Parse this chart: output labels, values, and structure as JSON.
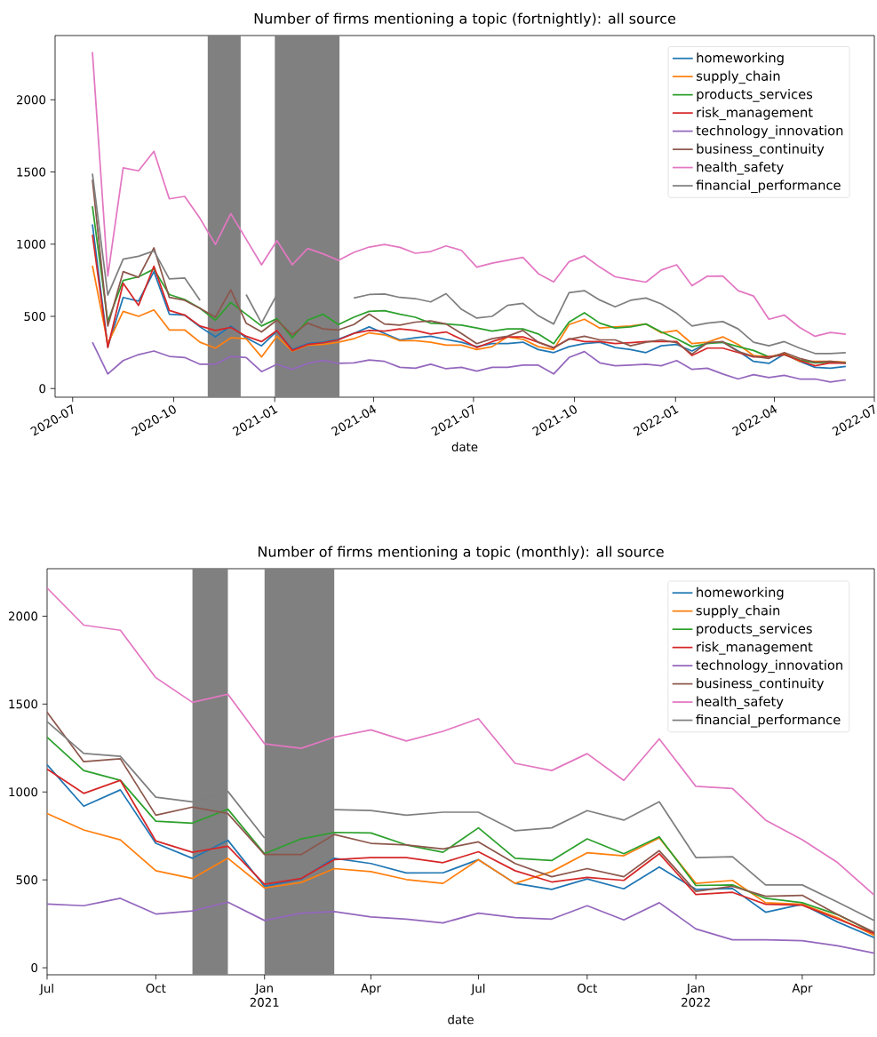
{
  "chart_data": [
    {
      "type": "line",
      "title": "Number of firms mentioning a topic (fortnightly): all source",
      "xlabel": "date",
      "legend": "top right",
      "x": [
        "2020-07-19",
        "2020-08-02",
        "2020-08-16",
        "2020-08-30",
        "2020-09-13",
        "2020-09-27",
        "2020-10-11",
        "2020-10-25",
        "2020-11-08",
        "2020-11-22",
        "2020-12-06",
        "2020-12-20",
        "2021-01-03",
        "2021-01-17",
        "2021-01-31",
        "2021-02-14",
        "2021-02-28",
        "2021-03-14",
        "2021-03-28",
        "2021-04-11",
        "2021-04-25",
        "2021-05-09",
        "2021-05-23",
        "2021-06-06",
        "2021-06-20",
        "2021-07-04",
        "2021-07-18",
        "2021-08-01",
        "2021-08-15",
        "2021-08-29",
        "2021-09-12",
        "2021-09-26",
        "2021-10-10",
        "2021-10-24",
        "2021-11-07",
        "2021-11-21",
        "2021-12-05",
        "2021-12-19",
        "2022-01-02",
        "2022-01-16",
        "2022-01-30",
        "2022-02-13",
        "2022-02-27",
        "2022-03-13",
        "2022-03-27",
        "2022-04-10",
        "2022-04-24",
        "2022-05-08",
        "2022-05-22",
        "2022-06-05"
      ],
      "xlim": [
        "2020-06-15",
        "2022-07-01"
      ],
      "xticks": [
        {
          "value": "2020-07",
          "label": "2020-07"
        },
        {
          "value": "2020-10",
          "label": "2020-10"
        },
        {
          "value": "2021-01",
          "label": "2021-01"
        },
        {
          "value": "2021-04",
          "label": "2021-04"
        },
        {
          "value": "2021-07",
          "label": "2021-07"
        },
        {
          "value": "2021-10",
          "label": "2021-10"
        },
        {
          "value": "2022-01",
          "label": "2022-01"
        },
        {
          "value": "2022-04",
          "label": "2022-04"
        },
        {
          "value": "2022-07",
          "label": "2022-07"
        }
      ],
      "ylim": [
        -60,
        2445
      ],
      "yticks": [
        0,
        500,
        1000,
        1500,
        2000
      ],
      "bands": [
        {
          "axis": "x",
          "from": "2020-11-01",
          "to": "2020-12-01",
          "color": "#808080"
        },
        {
          "axis": "x",
          "from": "2021-01-01",
          "to": "2021-03-01",
          "color": "#808080"
        }
      ],
      "series": [
        {
          "name": "homeworking",
          "color": "#1f77b4",
          "values": [
            1137,
            290,
            631,
            606,
            810,
            515,
            509,
            427,
            358,
            433,
            351,
            296,
            398,
            270,
            311,
            321,
            341,
            382,
            427,
            382,
            337,
            351,
            362,
            340,
            321,
            290,
            311,
            311,
            321,
            270,
            249,
            290,
            311,
            321,
            284,
            270,
            249,
            296,
            305,
            260,
            317,
            321,
            260,
            188,
            174,
            239,
            188,
            147,
            141,
            153
          ]
        },
        {
          "name": "supply_chain",
          "color": "#ff7f0e",
          "values": [
            851,
            311,
            535,
            500,
            545,
            406,
            406,
            321,
            280,
            351,
            345,
            219,
            362,
            260,
            301,
            305,
            321,
            345,
            386,
            372,
            331,
            331,
            321,
            301,
            301,
            270,
            290,
            358,
            341,
            290,
            270,
            443,
            480,
            419,
            427,
            433,
            447,
            386,
            402,
            311,
            321,
            358,
            305,
            229,
            219,
            243,
            188,
            188,
            188,
            182
          ]
        },
        {
          "name": "products_services",
          "color": "#2ca02c",
          "values": [
            1263,
            464,
            749,
            774,
            827,
            651,
            617,
            555,
            474,
            596,
            515,
            433,
            484,
            351,
            474,
            515,
            443,
            494,
            535,
            539,
            515,
            494,
            453,
            447,
            439,
            419,
            398,
            413,
            413,
            378,
            311,
            460,
            525,
            453,
            419,
            427,
            447,
            392,
            345,
            290,
            311,
            321,
            290,
            264,
            219,
            235,
            198,
            178,
            182,
            178
          ]
        },
        {
          "name": "risk_management",
          "color": "#d62728",
          "values": [
            1065,
            284,
            729,
            576,
            847,
            541,
            509,
            433,
            402,
            423,
            362,
            325,
            402,
            264,
            305,
            317,
            337,
            382,
            402,
            398,
            413,
            402,
            378,
            392,
            341,
            284,
            325,
            358,
            358,
            321,
            280,
            345,
            325,
            325,
            311,
            317,
            325,
            325,
            325,
            229,
            280,
            280,
            249,
            219,
            219,
            235,
            194,
            158,
            178,
            174
          ]
        },
        {
          "name": "technology_innovation",
          "color": "#9467bd",
          "values": [
            321,
            101,
            194,
            235,
            260,
            223,
            215,
            168,
            168,
            223,
            215,
            117,
            168,
            133,
            174,
            194,
            174,
            178,
            198,
            188,
            147,
            141,
            168,
            137,
            147,
            121,
            147,
            147,
            162,
            162,
            101,
            215,
            256,
            178,
            158,
            162,
            168,
            158,
            194,
            133,
            141,
            101,
            66,
            96,
            76,
            92,
            66,
            66,
            45,
            60
          ]
        },
        {
          "name": "business_continuity",
          "color": "#8c564b",
          "values": [
            1447,
            433,
            810,
            770,
            974,
            631,
            611,
            555,
            494,
            684,
            453,
            392,
            474,
            372,
            453,
            413,
            406,
            443,
            515,
            447,
            439,
            460,
            468,
            447,
            382,
            311,
            345,
            362,
            402,
            321,
            284,
            341,
            362,
            337,
            337,
            296,
            321,
            337,
            317,
            239,
            317,
            325,
            256,
            223,
            209,
            249,
            209,
            182,
            188,
            178
          ]
        },
        {
          "name": "health_safety",
          "color": "#e377c2",
          "values": [
            2330,
            780,
            1529,
            1508,
            1643,
            1314,
            1331,
            1178,
            998,
            1212,
            1035,
            857,
            1025,
            857,
            970,
            933,
            888,
            943,
            980,
            998,
            978,
            937,
            949,
            988,
            957,
            841,
            868,
            888,
            908,
            796,
            739,
            878,
            919,
            841,
            774,
            755,
            737,
            821,
            857,
            712,
            778,
            780,
            678,
            641,
            480,
            509,
            423,
            362,
            388,
            376
          ]
        },
        {
          "name": "financial_performance",
          "color": "#7f7f7f",
          "values": [
            1488,
            647,
            896,
            916,
            953,
            759,
            766,
            611,
            null,
            null,
            651,
            453,
            651,
            null,
            null,
            null,
            null,
            627,
            651,
            655,
            631,
            623,
            600,
            657,
            549,
            488,
            500,
            576,
            590,
            504,
            447,
            664,
            678,
            613,
            566,
            611,
            627,
            586,
            521,
            433,
            453,
            464,
            413,
            321,
            296,
            325,
            280,
            243,
            243,
            249
          ]
        }
      ]
    },
    {
      "type": "line",
      "title": "Number of firms mentioning a topic (monthly): all source",
      "xlabel": "date",
      "legend": "top right",
      "x": [
        "2020-07",
        "2020-08",
        "2020-09",
        "2020-10",
        "2020-11",
        "2020-12",
        "2021-01",
        "2021-02",
        "2021-03",
        "2021-04",
        "2021-05",
        "2021-06",
        "2021-07",
        "2021-08",
        "2021-09",
        "2021-10",
        "2021-11",
        "2021-12",
        "2022-01",
        "2022-02",
        "2022-03",
        "2022-04",
        "2022-05",
        "2022-06"
      ],
      "xlim": [
        "2020-07",
        "2022-06"
      ],
      "xticks": [
        {
          "value": "2020-07",
          "label": "Jul"
        },
        {
          "value": "2020-10",
          "label": "Oct"
        },
        {
          "value": "2021-01",
          "label": "Jan 2021"
        },
        {
          "value": "2021-04",
          "label": "Apr"
        },
        {
          "value": "2021-07",
          "label": "Jul"
        },
        {
          "value": "2021-10",
          "label": "Oct"
        },
        {
          "value": "2022-01",
          "label": "Jan 2022"
        },
        {
          "value": "2022-04",
          "label": "Apr"
        }
      ],
      "ylim": [
        -40,
        2270
      ],
      "yticks": [
        0,
        500,
        1000,
        1500,
        2000
      ],
      "bands": [
        {
          "axis": "x",
          "from": "2020-11",
          "to": "2020-12",
          "color": "#808080"
        },
        {
          "axis": "x",
          "from": "2021-01",
          "to": "2021-03",
          "color": "#808080"
        }
      ],
      "series": [
        {
          "name": "homeworking",
          "color": "#1f77b4",
          "values": [
            1155,
            919,
            1012,
            708,
            623,
            725,
            463,
            505,
            623,
            593,
            539,
            540,
            615,
            480,
            446,
            505,
            449,
            573,
            446,
            451,
            316,
            361,
            260,
            171
          ]
        },
        {
          "name": "supply_chain",
          "color": "#ff7f0e",
          "values": [
            877,
            784,
            728,
            552,
            508,
            623,
            454,
            485,
            564,
            547,
            502,
            480,
            615,
            480,
            547,
            654,
            637,
            738,
            480,
            497,
            370,
            361,
            285,
            184
          ]
        },
        {
          "name": "products_services",
          "color": "#2ca02c",
          "values": [
            1312,
            1122,
            1066,
            834,
            823,
            902,
            649,
            733,
            770,
            767,
            699,
            657,
            796,
            623,
            610,
            733,
            649,
            745,
            468,
            471,
            395,
            370,
            302,
            198
          ]
        },
        {
          "name": "risk_management",
          "color": "#d62728",
          "values": [
            1130,
            992,
            1066,
            721,
            657,
            691,
            475,
            508,
            615,
            627,
            627,
            598,
            660,
            552,
            488,
            514,
            497,
            649,
            417,
            429,
            361,
            356,
            277,
            194
          ]
        },
        {
          "name": "technology_innovation",
          "color": "#9467bd",
          "values": [
            362,
            353,
            395,
            306,
            323,
            373,
            269,
            311,
            319,
            289,
            277,
            255,
            311,
            285,
            277,
            353,
            272,
            370,
            221,
            159,
            159,
            154,
            125,
            83
          ]
        },
        {
          "name": "business_continuity",
          "color": "#8c564b",
          "values": [
            1454,
            1172,
            1189,
            868,
            914,
            877,
            644,
            644,
            758,
            708,
            699,
            676,
            716,
            593,
            518,
            564,
            518,
            666,
            434,
            463,
            407,
            412,
            302,
            201
          ]
        },
        {
          "name": "health_safety",
          "color": "#e377c2",
          "values": [
            2160,
            1949,
            1920,
            1650,
            1510,
            1556,
            1274,
            1248,
            1312,
            1353,
            1290,
            1345,
            1417,
            1163,
            1122,
            1218,
            1066,
            1302,
            1032,
            1020,
            840,
            728,
            598,
            413
          ]
        },
        {
          "name": "financial_performance",
          "color": "#7f7f7f",
          "values": [
            1400,
            1219,
            1203,
            970,
            944,
            1003,
            738,
            null,
            900,
            894,
            868,
            885,
            885,
            779,
            796,
            894,
            840,
            944,
            627,
            632,
            471,
            471,
            373,
            269
          ]
        }
      ]
    }
  ]
}
